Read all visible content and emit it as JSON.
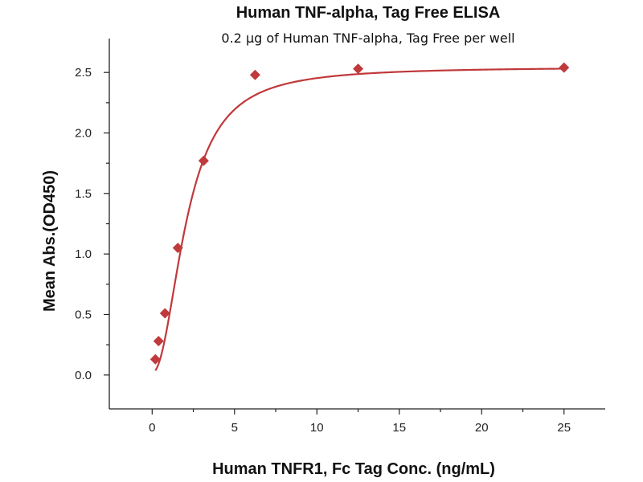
{
  "chart_data": {
    "type": "scatter",
    "title": "Human TNF-alpha, Tag Free ELISA",
    "subtitle": "0.2 μg of Human TNF-alpha, Tag Free per well",
    "xlabel": "Human TNFR1, Fc Tag Conc. (ng/mL)",
    "ylabel": "Mean Abs.(OD450)",
    "xlim": [
      -2.6,
      27.5
    ],
    "ylim": [
      -0.28,
      2.78
    ],
    "x_ticks": [
      0,
      5,
      10,
      15,
      20,
      25
    ],
    "x_minor_ticks": [
      2.5,
      7.5,
      12.5,
      17.5,
      22.5
    ],
    "y_ticks": [
      0.0,
      0.5,
      1.0,
      1.5,
      2.0,
      2.5
    ],
    "y_tick_labels": [
      "0.0",
      "0.5",
      "1.0",
      "1.5",
      "2.0",
      "2.5"
    ],
    "y_minor_ticks": [
      0.25,
      0.75,
      1.25,
      1.75,
      2.25
    ],
    "grid": false,
    "series": [
      {
        "marker": "diamond",
        "color": "#C0393B",
        "x": [
          0.195,
          0.39,
          0.78,
          1.56,
          3.125,
          6.25,
          12.5,
          25
        ],
        "y": [
          0.13,
          0.28,
          0.51,
          1.05,
          1.77,
          2.48,
          2.53,
          2.54
        ]
      }
    ],
    "fit": {
      "type": "4PL",
      "color": "#C0393B",
      "top": 2.545,
      "bottom": 0.02,
      "ec50": 2.1,
      "hill": 2.1
    }
  }
}
